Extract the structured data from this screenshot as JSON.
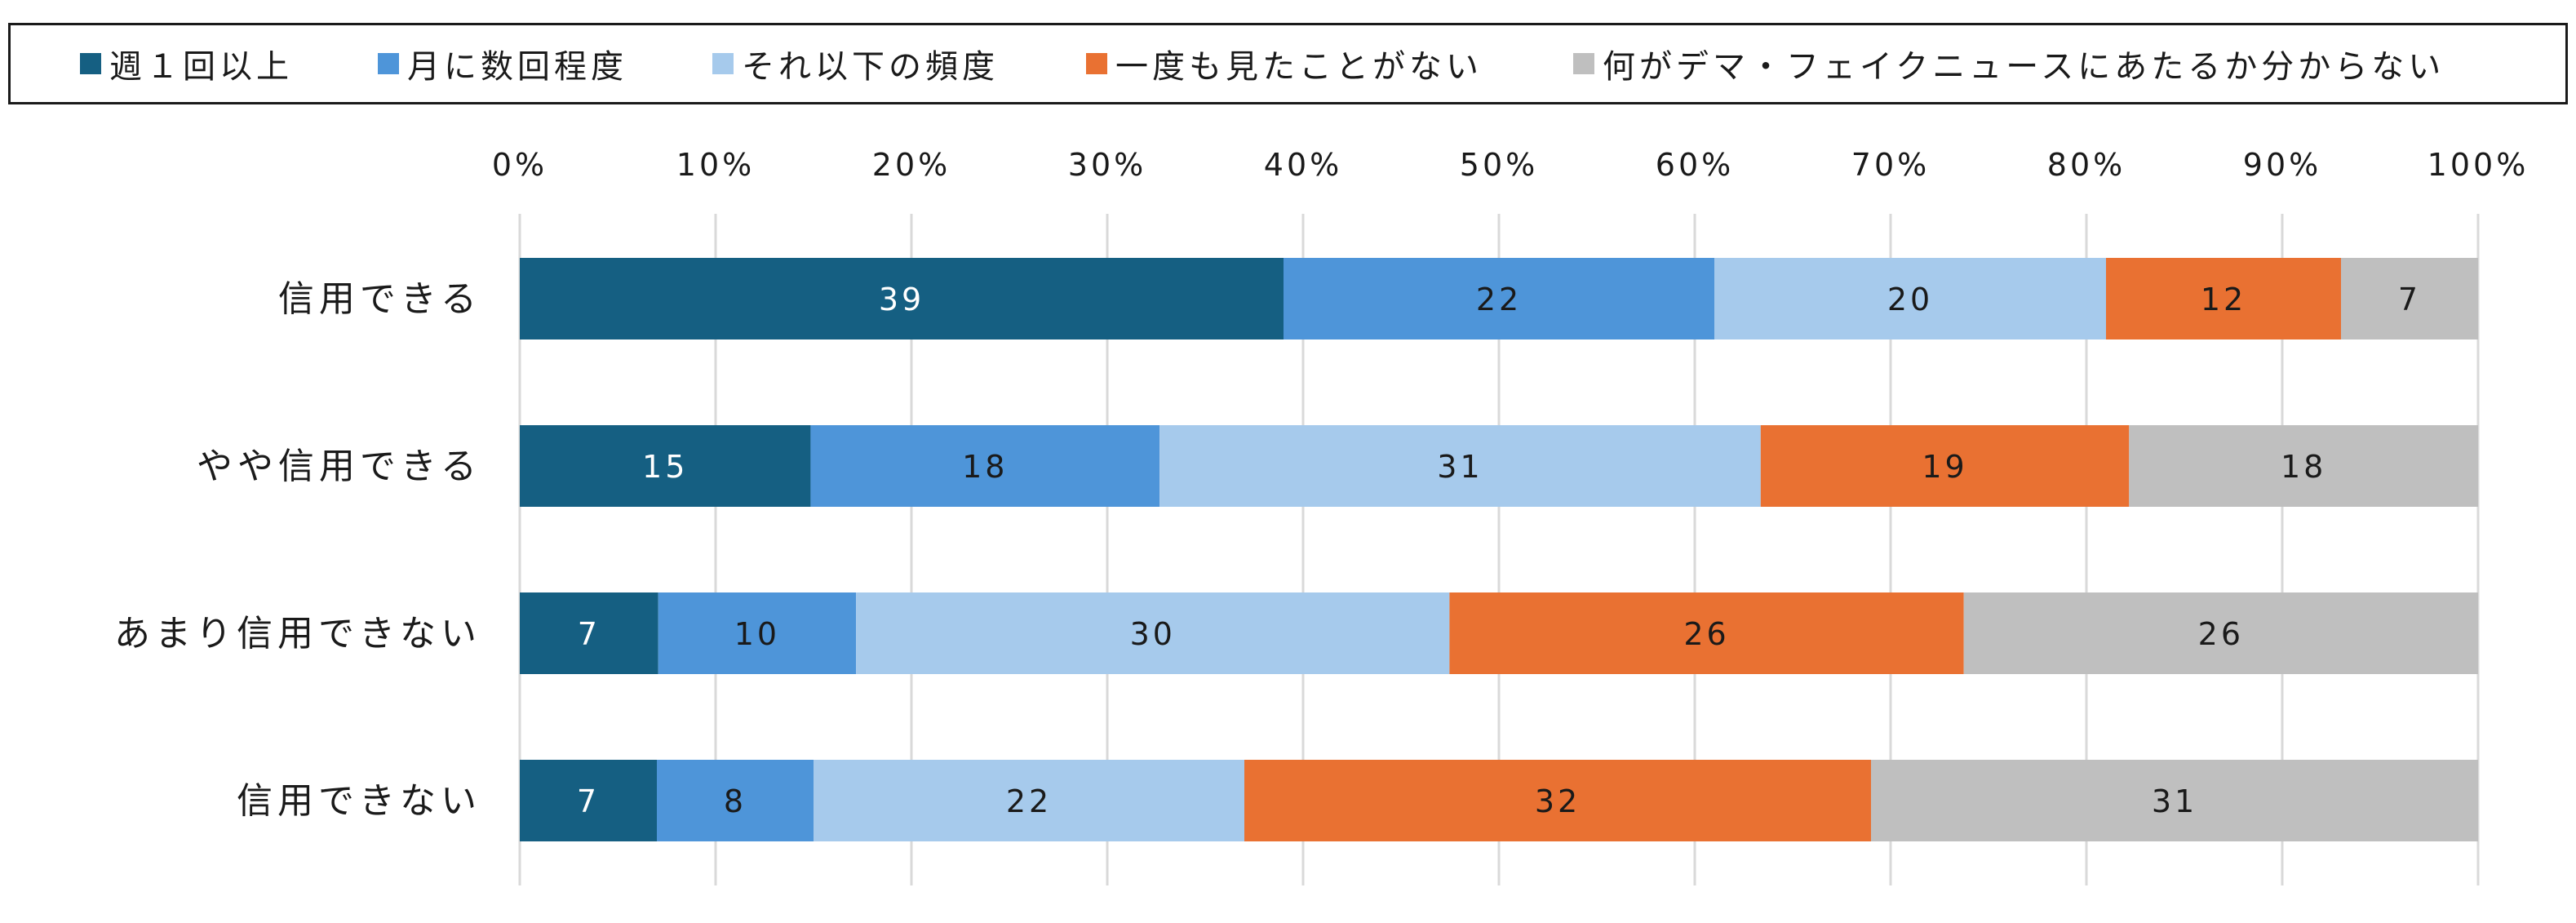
{
  "chart_data": {
    "type": "bar",
    "orientation": "horizontal",
    "stacked": true,
    "percent": true,
    "categories": [
      "信用できる",
      "やや信用できる",
      "あまり信用できない",
      "信用できない"
    ],
    "series": [
      {
        "name": "週１回以上",
        "color": "#155f82",
        "values": [
          39,
          15,
          7,
          7
        ]
      },
      {
        "name": "月に数回程度",
        "color": "#4e95d9",
        "values": [
          22,
          18,
          10,
          8
        ]
      },
      {
        "name": "それ以下の頻度",
        "color": "#a6caec",
        "values": [
          20,
          31,
          30,
          22
        ]
      },
      {
        "name": "一度も見たことがない",
        "color": "#e97132",
        "values": [
          12,
          19,
          26,
          32
        ]
      },
      {
        "name": "何がデマ・フェイクニュースにあたるか分からない",
        "color": "#bfbfbf",
        "values": [
          7,
          18,
          26,
          31
        ]
      }
    ],
    "x_ticks": [
      "0%",
      "10%",
      "20%",
      "30%",
      "40%",
      "50%",
      "60%",
      "70%",
      "80%",
      "90%",
      "100%"
    ],
    "xlim": [
      0,
      100
    ],
    "grid": true,
    "legend_position": "top"
  }
}
